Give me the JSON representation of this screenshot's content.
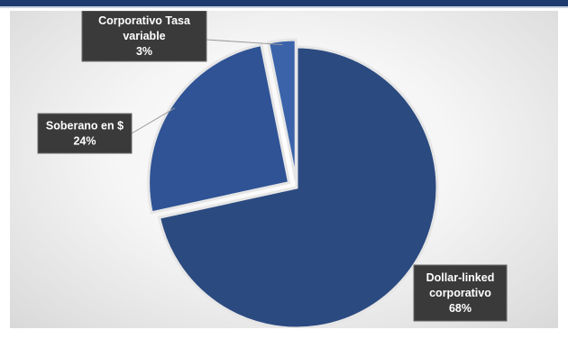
{
  "colors": {
    "accent": "#1f3a6e",
    "slice_main": "#2b4a80",
    "slice_mid": "#2f5395",
    "slice_small": "#3a63aa",
    "label_bg": "#3a3a3a"
  },
  "chart_data": {
    "type": "pie",
    "title": "",
    "slices": [
      {
        "label": "Dollar-linked corporativo",
        "label_lines": [
          "Dollar-linked",
          "corporativo",
          "68%"
        ],
        "value": 68,
        "display": "68%"
      },
      {
        "label": "Soberano en $",
        "label_lines": [
          "Soberano en $",
          "24%"
        ],
        "value": 24,
        "display": "24%"
      },
      {
        "label": "Corporativo Tasa variable",
        "label_lines": [
          "Corporativo Tasa",
          "variable",
          "3%"
        ],
        "value": 3,
        "display": "3%"
      }
    ],
    "legend": "none"
  }
}
